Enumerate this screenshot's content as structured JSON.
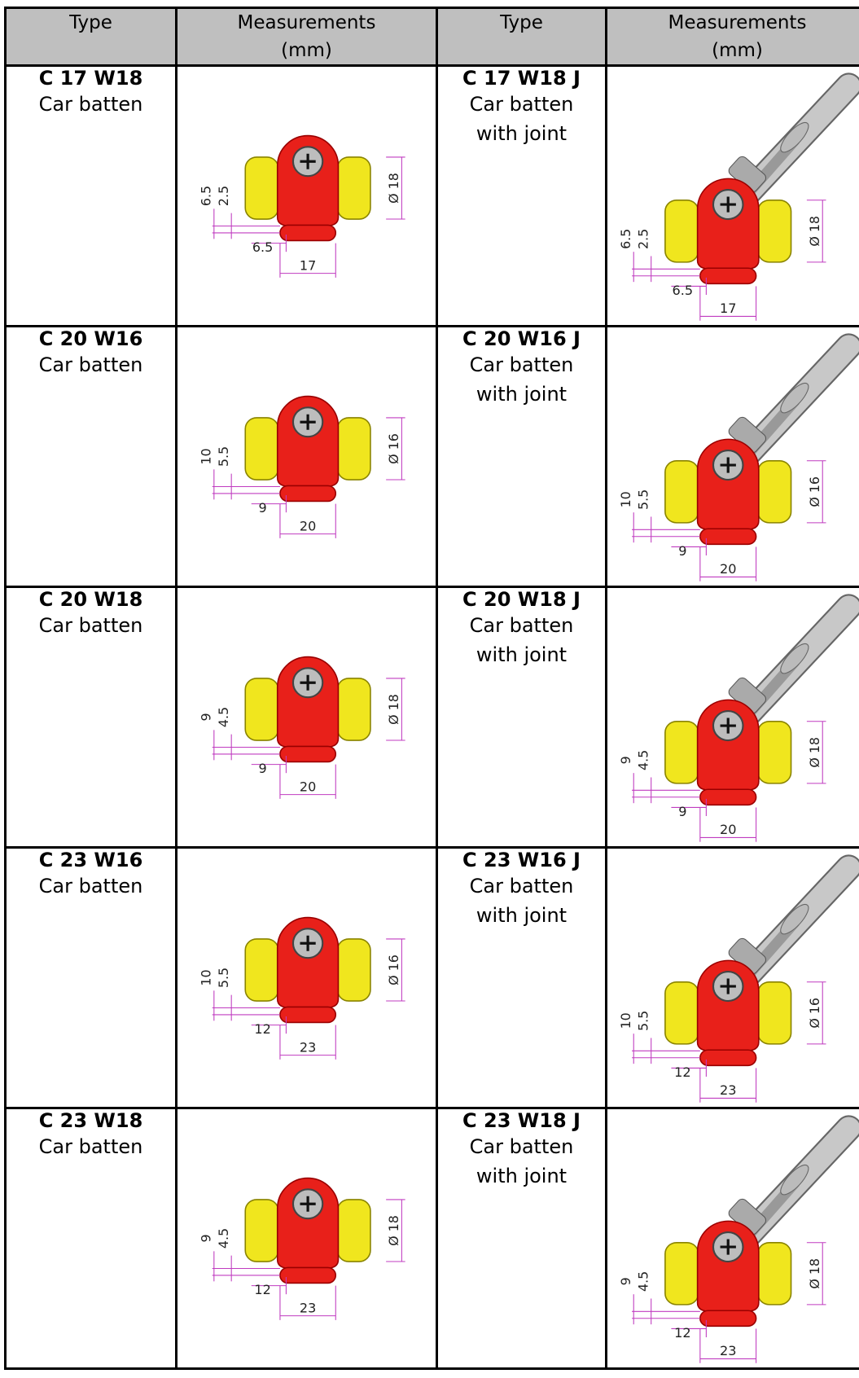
{
  "table": {
    "header": [
      {
        "lines": [
          "Type"
        ]
      },
      {
        "lines": [
          "Measurements",
          "(mm)"
        ]
      },
      {
        "lines": [
          "Type"
        ]
      },
      {
        "lines": [
          "Measurements",
          "(mm)"
        ]
      }
    ],
    "rows": [
      {
        "left": {
          "code": "C 17 W18",
          "description": [
            "Car batten"
          ],
          "dims": {
            "v_outer": "6.5",
            "v_inner": "2.5",
            "diameter": "Ø 18",
            "inner": "6.5",
            "width": "17"
          }
        },
        "right": {
          "code": "C 17 W18 J",
          "description": [
            "Car batten",
            "with joint"
          ],
          "dims": {
            "v_outer": "6.5",
            "v_inner": "2.5",
            "diameter": "Ø 18",
            "inner": "6.5",
            "width": "17"
          }
        }
      },
      {
        "left": {
          "code": "C 20 W16",
          "description": [
            "Car batten"
          ],
          "dims": {
            "v_outer": "10",
            "v_inner": "5.5",
            "diameter": "Ø 16",
            "inner": "9",
            "width": "20"
          }
        },
        "right": {
          "code": "C 20 W16 J",
          "description": [
            "Car batten",
            "with joint"
          ],
          "dims": {
            "v_outer": "10",
            "v_inner": "5.5",
            "diameter": "Ø 16",
            "inner": "9",
            "width": "20"
          }
        }
      },
      {
        "left": {
          "code": "C 20 W18",
          "description": [
            "Car batten"
          ],
          "dims": {
            "v_outer": "9",
            "v_inner": "4.5",
            "diameter": "Ø 18",
            "inner": "9",
            "width": "20"
          }
        },
        "right": {
          "code": "C 20 W18 J",
          "description": [
            "Car batten",
            "with joint"
          ],
          "dims": {
            "v_outer": "9",
            "v_inner": "4.5",
            "diameter": "Ø 18",
            "inner": "9",
            "width": "20"
          }
        }
      },
      {
        "left": {
          "code": "C 23 W16",
          "description": [
            "Car batten"
          ],
          "dims": {
            "v_outer": "10",
            "v_inner": "5.5",
            "diameter": "Ø 16",
            "inner": "12",
            "width": "23"
          }
        },
        "right": {
          "code": "C 23 W16 J",
          "description": [
            "Car batten",
            "with joint"
          ],
          "dims": {
            "v_outer": "10",
            "v_inner": "5.5",
            "diameter": "Ø 16",
            "inner": "12",
            "width": "23"
          }
        }
      },
      {
        "left": {
          "code": "C 23 W18",
          "description": [
            "Car batten"
          ],
          "dims": {
            "v_outer": "9",
            "v_inner": "4.5",
            "diameter": "Ø 18",
            "inner": "12",
            "width": "23"
          }
        },
        "right": {
          "code": "C 23 W18 J",
          "description": [
            "Car batten",
            "with joint"
          ],
          "dims": {
            "v_outer": "9",
            "v_inner": "4.5",
            "diameter": "Ø 18",
            "inner": "12",
            "width": "23"
          }
        }
      }
    ]
  }
}
